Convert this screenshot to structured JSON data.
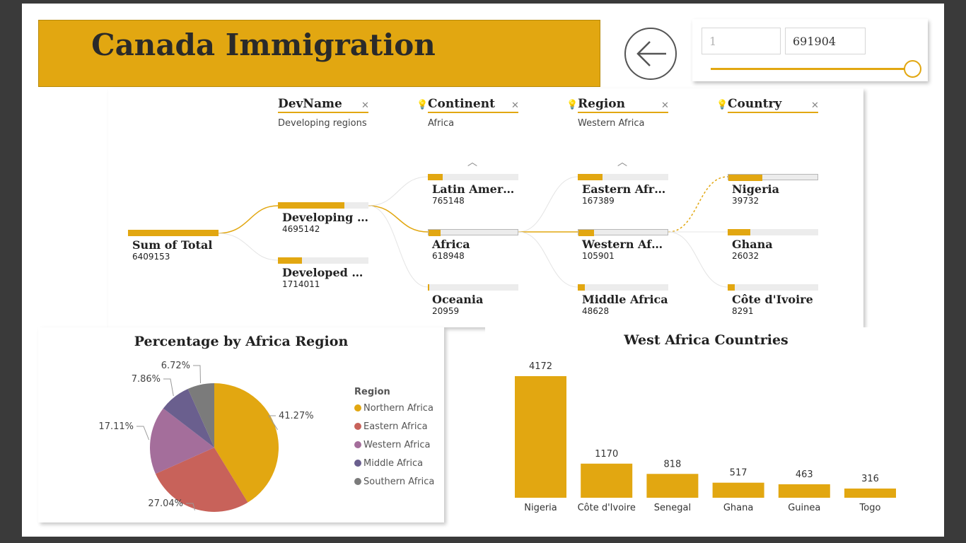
{
  "header": {
    "title": "Canada Immigration"
  },
  "back_button": {
    "icon": "arrow-left-icon"
  },
  "range_slicer": {
    "min_value": "1",
    "max_value": "691904"
  },
  "decomposition_tree": {
    "levels": [
      {
        "name": "DevName",
        "filter": "Developing regions"
      },
      {
        "name": "Continent",
        "filter": "Africa"
      },
      {
        "name": "Region",
        "filter": "Western Africa"
      },
      {
        "name": "Country",
        "filter": ""
      }
    ],
    "root": {
      "label": "Sum of Total",
      "value": "6409153"
    },
    "devname_nodes": [
      {
        "label": "Developing regions",
        "value": "4695142"
      },
      {
        "label": "Developed regions",
        "value": "1714011"
      }
    ],
    "continent_nodes": [
      {
        "label": "Latin America and the Caribbean",
        "value": "765148"
      },
      {
        "label": "Africa",
        "value": "618948"
      },
      {
        "label": "Oceania",
        "value": "20959"
      }
    ],
    "region_nodes": [
      {
        "label": "Eastern Africa",
        "value": "167389"
      },
      {
        "label": "Western Africa",
        "value": "105901"
      },
      {
        "label": "Middle Africa",
        "value": "48628"
      }
    ],
    "country_nodes": [
      {
        "label": "Nigeria",
        "value": "39732"
      },
      {
        "label": "Ghana",
        "value": "26032"
      },
      {
        "label": "Côte d'Ivoire",
        "value": "8291"
      }
    ]
  },
  "colors": {
    "accent": "#E2A711"
  },
  "chart_data": [
    {
      "type": "pie",
      "title": "Percentage by Africa Region",
      "legend_title": "Region",
      "legend_position": "right",
      "slices": [
        {
          "name": "Northern Africa",
          "value": 41.27,
          "label": "41.27%",
          "color": "#E2A711"
        },
        {
          "name": "Eastern Africa",
          "value": 27.04,
          "label": "27.04%",
          "color": "#C8625A"
        },
        {
          "name": "Western Africa",
          "value": 17.11,
          "label": "17.11%",
          "color": "#A46E9B"
        },
        {
          "name": "Middle Africa",
          "value": 7.86,
          "label": "7.86%",
          "color": "#6A5F8E"
        },
        {
          "name": "Southern Africa",
          "value": 6.72,
          "label": "6.72%",
          "color": "#7B7B7B"
        }
      ]
    },
    {
      "type": "bar",
      "title": "West Africa Countries",
      "categories": [
        "Nigeria",
        "Côte d'Ivoire",
        "Senegal",
        "Ghana",
        "Guinea",
        "Togo"
      ],
      "values": [
        4172,
        1170,
        818,
        517,
        463,
        316
      ],
      "data_labels": [
        "4172",
        "1170",
        "818",
        "517",
        "463",
        "316"
      ],
      "color": "#E2A711",
      "ylim": [
        0,
        4172
      ]
    }
  ]
}
